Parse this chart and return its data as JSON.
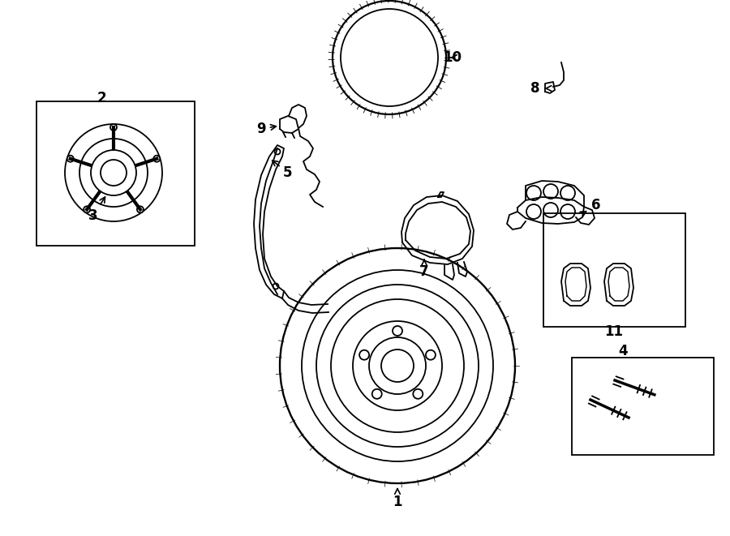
{
  "bg": "#ffffff",
  "lc": "#000000",
  "lw": 1.3,
  "fs": 12
}
